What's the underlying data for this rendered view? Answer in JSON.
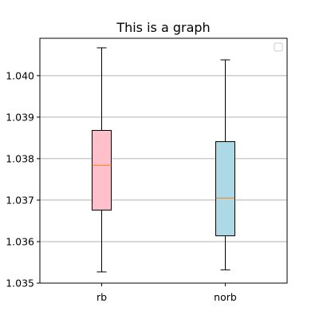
{
  "chart_data": {
    "type": "box",
    "title": "This is a graph",
    "xlabel": "",
    "ylabel": "",
    "ylim": [
      1.035,
      1.0409
    ],
    "yticks": [
      {
        "value": 1.035,
        "label": "1.035"
      },
      {
        "value": 1.036,
        "label": "1.036"
      },
      {
        "value": 1.037,
        "label": "1.037"
      },
      {
        "value": 1.038,
        "label": "1.038"
      },
      {
        "value": 1.039,
        "label": "1.039"
      },
      {
        "value": 1.04,
        "label": "1.040"
      }
    ],
    "grid": "y",
    "legend": {
      "placement": "top-right",
      "entries": []
    },
    "boxes": [
      {
        "label": "rb",
        "whisker_low": 1.03527,
        "q1": 1.03676,
        "median": 1.03784,
        "q3": 1.03868,
        "whisker_high": 1.04067,
        "fill": "#ffc0cb"
      },
      {
        "label": "norb",
        "whisker_low": 1.03532,
        "q1": 1.03614,
        "median": 1.03705,
        "q3": 1.03841,
        "whisker_high": 1.04038,
        "fill": "#add8e6"
      }
    ],
    "colors": {
      "median": "#ff7f0e",
      "grid": "#b0b0b0",
      "box_edge": "#000000"
    }
  }
}
